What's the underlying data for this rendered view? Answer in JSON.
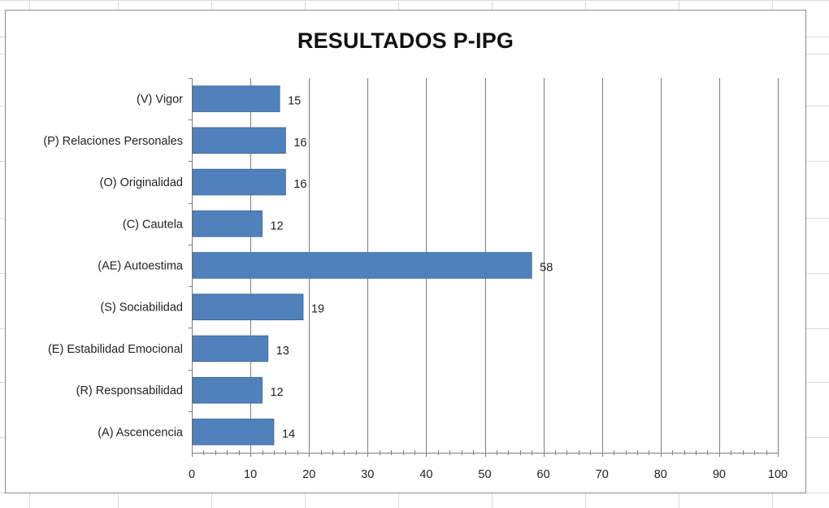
{
  "colors": {
    "bar": "#4F81BD",
    "grid": "#7f7f7f",
    "sheet_grid": "#d9d9d9"
  },
  "chart_data": {
    "type": "bar",
    "orientation": "horizontal",
    "title": "RESULTADOS P-IPG",
    "categories": [
      "(V) Vigor",
      "(P) Relaciones Personales",
      "(O) Originalidad",
      "(C) Cautela",
      "(AE) Autoestima",
      "(S) Sociabilidad",
      "(E) Estabilidad Emocional",
      "(R) Responsabilidad",
      "(A) Ascencencia"
    ],
    "values": [
      15,
      16,
      16,
      12,
      58,
      19,
      13,
      12,
      14
    ],
    "data_labels": [
      "15",
      "16",
      "16",
      "12",
      "58",
      "19",
      "13",
      "12",
      "14"
    ],
    "xlim": [
      0,
      100
    ],
    "x_ticks": [
      0,
      10,
      20,
      30,
      40,
      50,
      60,
      70,
      80,
      90,
      100
    ],
    "x_tick_labels": [
      "0",
      "10",
      "20",
      "30",
      "40",
      "50",
      "60",
      "70",
      "80",
      "90",
      "100"
    ],
    "grid": "vertical major",
    "legend": "none"
  }
}
